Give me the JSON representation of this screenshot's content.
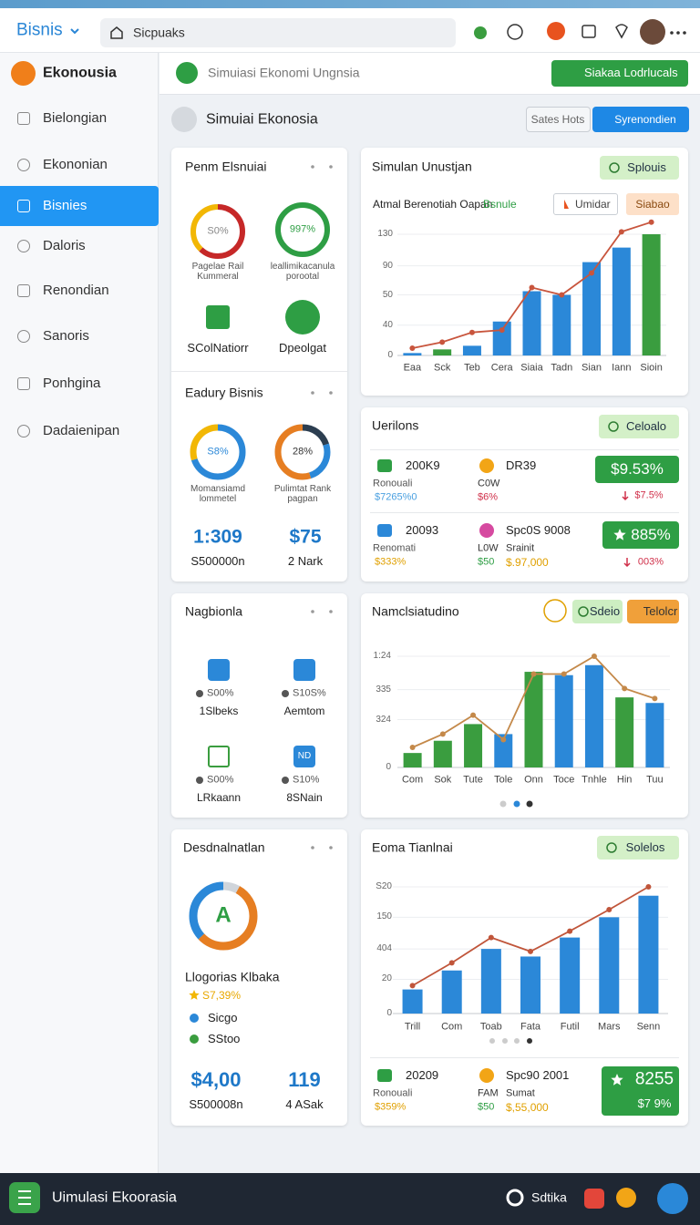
{
  "topbar": {
    "brand": "Bisnis",
    "search": "Sicpuaks"
  },
  "sidebar": {
    "logo": "Ekonousia",
    "items": [
      "Bielongian",
      "Ekononian",
      "Bisnies",
      "Daloris",
      "Renondian",
      "Sanoris",
      "Ponhgina",
      "Dadaienipan"
    ],
    "active": 2
  },
  "header": {
    "pill": "Simuiasi Ekonomi Ungnsia",
    "button": "Siakaa Lodrlucals"
  },
  "page_title": {
    "text": "Simuiai Ekonosia",
    "buttons": [
      "Sates Hots",
      "Syrenondien"
    ]
  },
  "overview": {
    "title": "Penm Elsnuiai",
    "gauges": [
      {
        "value": "S0%",
        "label": "Pagelae Rail Kummeral"
      },
      {
        "value": "997%",
        "label": "leallimikacanula porootal"
      }
    ],
    "shortcuts": [
      "SColNatiorr",
      "Dpeolgat"
    ]
  },
  "industry": {
    "title": "Eadury Bisnis",
    "gauges": [
      {
        "value": "S8%",
        "label": "Momansiamd lommetel"
      },
      {
        "value": "28%",
        "label": "Pulimtat Rank pagpan"
      }
    ],
    "stats": [
      {
        "value": "1:309",
        "label": "S500000n"
      },
      {
        "value": "$75",
        "label": "2 Nark"
      }
    ]
  },
  "regions": {
    "title": "Nagbionla",
    "items": [
      {
        "value": "S00%",
        "label": "1Slbeks"
      },
      {
        "value": "S10S%",
        "label": "Aemtom"
      },
      {
        "value": "S00%",
        "label": "LRkaann"
      },
      {
        "value": "S10%",
        "label": "8SNain",
        "icon": "ND"
      }
    ]
  },
  "destinations": {
    "title": "Desdnalnatlan",
    "donut": "A",
    "name": "Llogorias Klbaka",
    "rating": "S7,39%",
    "legend": [
      "Sicgo",
      "SStoo"
    ],
    "stats": [
      {
        "value": "$4,00",
        "label": "S500008n"
      },
      {
        "value": "119",
        "label": "4 ASak"
      }
    ]
  },
  "simulation": {
    "title": "Simulan Unustjan",
    "badge": "Splouis",
    "subtitle": "Atmal Berenotiah Oapan",
    "tags": [
      "Bsnule",
      "Umidar",
      "Siabao"
    ],
    "chart": {
      "type": "bar",
      "grid": true,
      "categories": [
        "Eaa",
        "Sck",
        "Teb",
        "Cera",
        "Siaia",
        "Tadn",
        "Sian",
        "Iann",
        "Sioin"
      ],
      "ylim": [
        0,
        100
      ],
      "yticks": [
        0,
        {
          "value": 25,
          "label": "40"
        },
        50,
        {
          "value": 74,
          "label": "90"
        },
        {
          "value": 100,
          "label": "130"
        }
      ],
      "series": [
        {
          "type": "bar",
          "values": [
            2,
            5,
            8,
            28,
            53,
            50,
            77,
            89,
            100
          ],
          "colors": [
            "#2b88d8",
            "#3a9d3f",
            "#2b88d8",
            "#2b88d8",
            "#2b88d8",
            "#2b88d8",
            "#2b88d8",
            "#2b88d8",
            "#3a9d3f"
          ]
        },
        {
          "type": "line",
          "color": "#c8553d",
          "values": [
            6,
            11,
            19,
            21,
            56,
            50,
            68,
            102,
            110
          ]
        }
      ]
    }
  },
  "variations": {
    "title": "Uerilons",
    "badge": "Celoalo",
    "rows": [
      {
        "a": {
          "code": "200K9",
          "label": "Ronouali",
          "value": "$7265%0"
        },
        "b": {
          "code": "DR39",
          "label": "C0W",
          "value": "$6%"
        },
        "box": {
          "main": "$9.53%",
          "sub": "$7.5%"
        }
      },
      {
        "a": {
          "code": "20093",
          "label": "Renomati",
          "value": "$333%"
        },
        "b": {
          "code": "Spc0S 9008",
          "label": "L0W",
          "label2": "Srainit",
          "value": "$50",
          "value2": "$.97,000"
        },
        "box": {
          "main": "885%",
          "sub": "003%"
        }
      }
    ]
  },
  "national": {
    "title": "Namclsiatudino",
    "badges": [
      "Sdeio",
      "Telolcr"
    ],
    "chart": {
      "type": "bar",
      "grid": true,
      "categories": [
        "Com",
        "Sok",
        "Tute",
        "Tole",
        "Onn",
        "Toce",
        "Tnhle",
        "Hin",
        "Tuu"
      ],
      "ylim": [
        0,
        100
      ],
      "yticks": [
        0,
        {
          "value": 43,
          "label": "324"
        },
        {
          "value": 70,
          "label": "335"
        },
        {
          "value": 100,
          "label": "1:24"
        }
      ],
      "series": [
        {
          "type": "bar",
          "values": [
            13,
            24,
            39,
            30,
            86,
            83,
            92,
            63,
            58
          ],
          "colors": [
            "#3a9d3f",
            "#3a9d3f",
            "#3a9d3f",
            "#2b88d8",
            "#3a9d3f",
            "#2b88d8",
            "#2b88d8",
            "#3a9d3f",
            "#2b88d8"
          ]
        },
        {
          "type": "line",
          "color": "#c4894a",
          "values": [
            18,
            30,
            47,
            25,
            84,
            84,
            100,
            71,
            62
          ]
        }
      ]
    }
  },
  "economy": {
    "title": "Eoma Tianlnai",
    "badge": "Solelos",
    "chart": {
      "type": "bar",
      "grid": true,
      "categories": [
        "Trill",
        "Com",
        "Toab",
        "Fata",
        "Futil",
        "Mars",
        "Senn"
      ],
      "ylim": [
        0,
        100
      ],
      "yticks": [
        0,
        {
          "value": 27,
          "label": "20"
        },
        {
          "value": 51,
          "label": "404"
        },
        {
          "value": 76,
          "label": "150"
        },
        {
          "value": 100,
          "label": "S20"
        }
      ],
      "series": [
        {
          "type": "bar",
          "values": [
            19,
            34,
            51,
            45,
            60,
            76,
            93
          ],
          "colors": [
            "#2b88d8",
            "#2b88d8",
            "#2b88d8",
            "#2b88d8",
            "#2b88d8",
            "#2b88d8",
            "#2b88d8"
          ]
        },
        {
          "type": "line",
          "color": "#c0553a",
          "values": [
            22,
            40,
            60,
            49,
            65,
            82,
            100
          ]
        }
      ]
    },
    "row": {
      "a": {
        "code": "20209",
        "label": "Ronouali",
        "value": "$359%"
      },
      "b": {
        "code": "Spc90 2001",
        "label": "FAM",
        "label2": "Sumat",
        "value": "$50",
        "value2": "$,55,000"
      },
      "box": {
        "main": "8255",
        "sub": "$7 9%"
      }
    }
  },
  "bottombar": {
    "title": "Uimulasi Ekoorasia",
    "settings": "Sdtika"
  }
}
